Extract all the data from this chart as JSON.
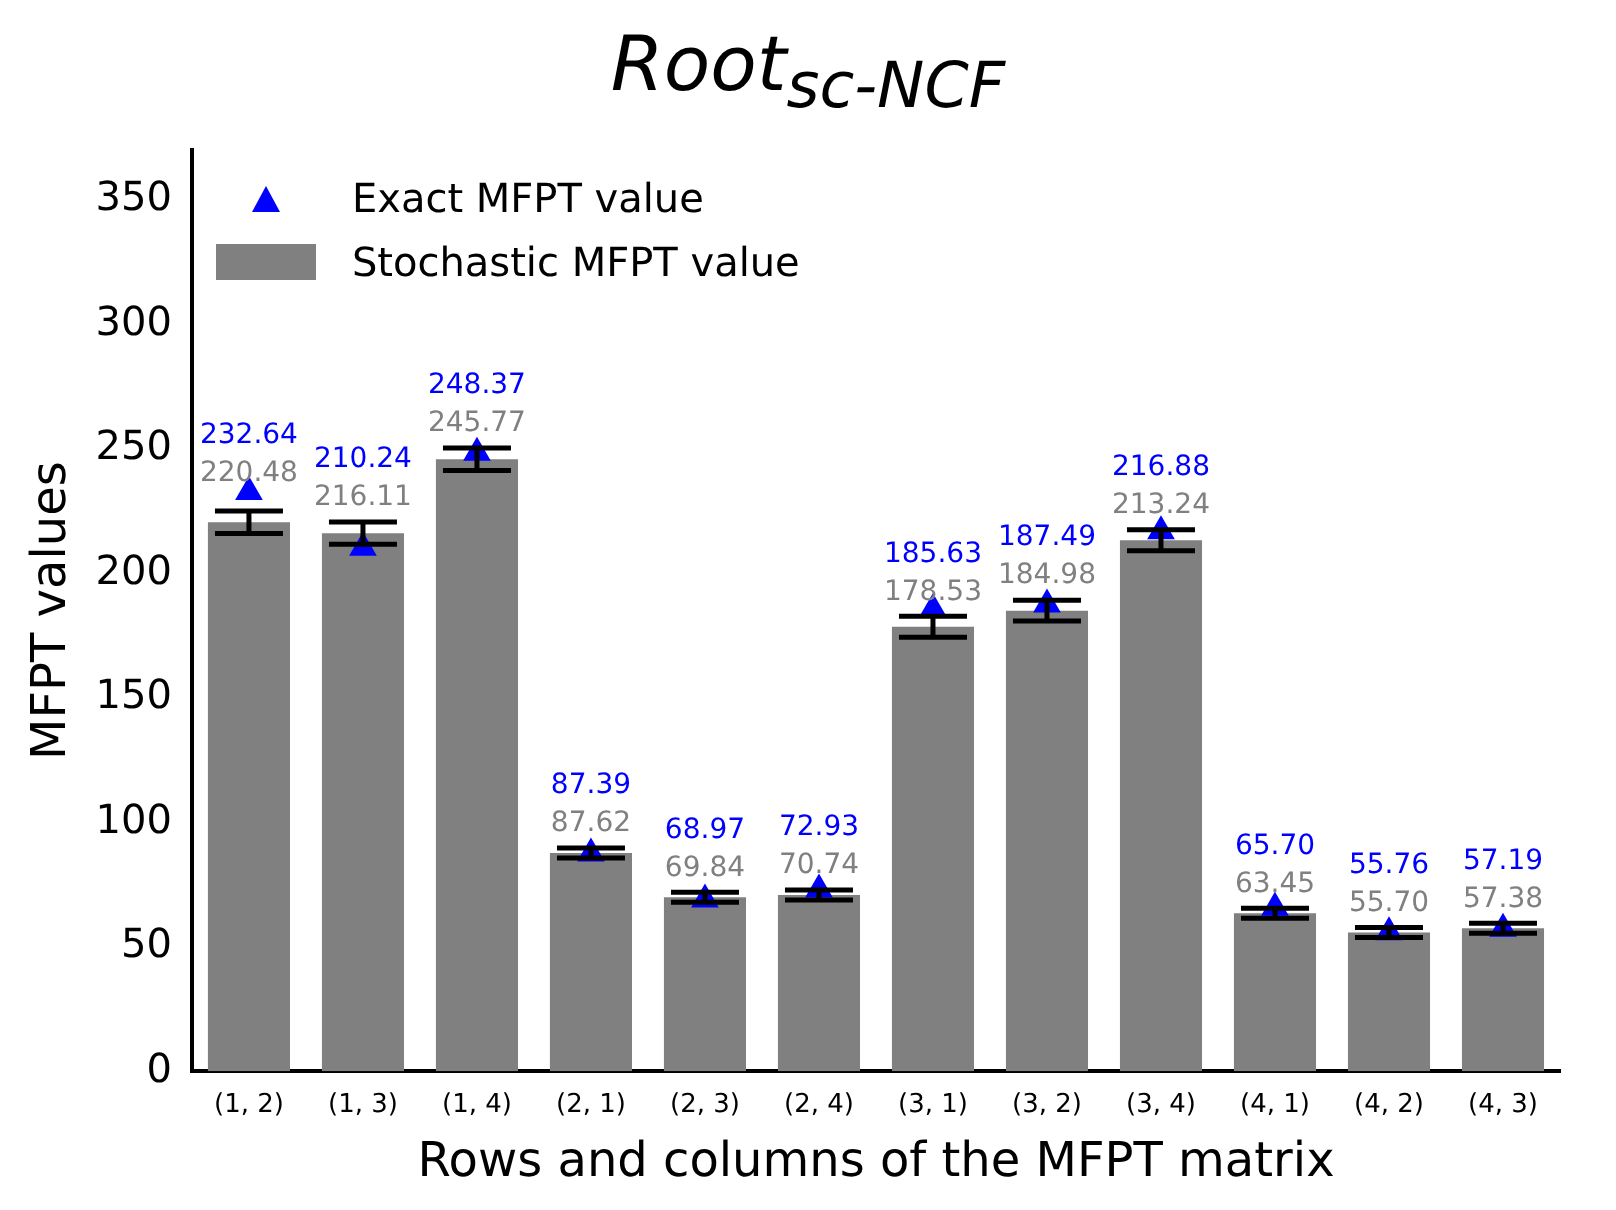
{
  "chart_data": {
    "type": "bar",
    "title": "Root$_{sc-NCF}$",
    "xlabel": "Rows and columns of the MFPT matrix",
    "ylabel": "MFPT values",
    "categories": [
      "(1, 2)",
      "(1, 3)",
      "(1, 4)",
      "(2, 1)",
      "(2, 3)",
      "(2, 4)",
      "(3, 1)",
      "(3, 2)",
      "(3, 4)",
      "(4, 1)",
      "(4, 2)",
      "(4, 3)"
    ],
    "series": [
      {
        "name": "Stochastic MFPT value",
        "color": "#808080",
        "values": [
          220.48,
          216.11,
          245.77,
          87.62,
          69.84,
          70.74,
          178.53,
          184.98,
          213.24,
          63.45,
          55.7,
          57.38
        ],
        "errors": [
          4.5,
          4.5,
          4.5,
          2,
          2,
          2,
          4.2,
          4.2,
          4.2,
          2,
          2,
          2
        ],
        "value_labels": [
          "220.48",
          "216.11",
          "245.77",
          "87.62",
          "69.84",
          "70.74",
          "178.53",
          "184.98",
          "213.24",
          "63.45",
          "55.70",
          "57.38"
        ]
      },
      {
        "name": "Exact MFPT value",
        "type": "scatter",
        "color": "#0000ff",
        "marker": "triangle",
        "values": [
          232.64,
          210.24,
          248.37,
          87.39,
          68.97,
          72.93,
          185.63,
          187.49,
          216.88,
          65.7,
          55.76,
          57.19
        ],
        "value_labels": [
          "232.64",
          "210.24",
          "248.37",
          "87.39",
          "68.97",
          "72.93",
          "185.63",
          "187.49",
          "216.88",
          "65.70",
          "55.76",
          "57.19"
        ]
      }
    ],
    "ylim": [
      0,
      370
    ],
    "yticks": [
      0,
      50,
      100,
      150,
      200,
      250,
      300,
      350
    ],
    "grid": false,
    "legend": "top left"
  }
}
